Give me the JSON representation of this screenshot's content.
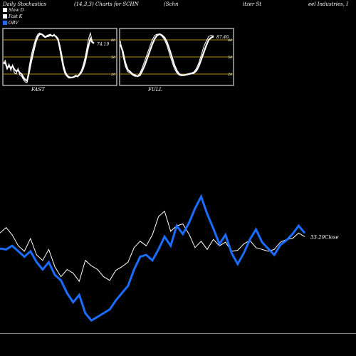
{
  "header": {
    "title_left": "Daily Stochastics",
    "title_mid": "(14,3,3) Charts for SCHN",
    "title_company_a": "(Schn",
    "title_company_b": "itzer St",
    "title_company_c": "eel Industries, I"
  },
  "legend": [
    {
      "label": "Slow  D",
      "color": "#ffffff"
    },
    {
      "label": "Fast  K",
      "color": "#ffffff"
    },
    {
      "label": "OBV",
      "color": "#1a6dff"
    }
  ],
  "colors": {
    "background": "#000000",
    "obv": "#1a6dff",
    "close": "#ffffff",
    "band": "#b8860b"
  },
  "chart_data": [
    {
      "type": "line",
      "name": "FAST",
      "label": "FAST",
      "ylim": [
        0,
        100
      ],
      "ticks": [
        20,
        50,
        80
      ],
      "last_value_label": "74.19",
      "series": [
        {
          "name": "Slow D",
          "values": [
            38,
            40,
            30,
            35,
            30,
            34,
            28,
            25,
            27,
            22,
            20,
            14,
            10,
            8,
            22,
            38,
            52,
            66,
            78,
            86,
            90,
            90,
            88,
            85,
            86,
            87,
            88,
            87,
            88,
            86,
            82,
            70,
            54,
            36,
            24,
            18,
            15,
            14,
            14,
            15,
            17,
            16,
            19,
            23,
            30,
            40,
            55,
            70,
            82,
            76,
            74
          ]
        },
        {
          "name": "Fast K",
          "values": [
            40,
            44,
            28,
            38,
            26,
            36,
            22,
            20,
            30,
            18,
            16,
            10,
            6,
            5,
            30,
            48,
            62,
            74,
            84,
            90,
            92,
            90,
            86,
            84,
            88,
            89,
            90,
            86,
            90,
            84,
            80,
            64,
            46,
            30,
            20,
            16,
            13,
            13,
            14,
            16,
            18,
            15,
            21,
            26,
            36,
            48,
            64,
            82,
            92,
            78,
            74
          ]
        }
      ]
    },
    {
      "type": "line",
      "name": "FULL",
      "label": "FULL",
      "ylim": [
        0,
        100
      ],
      "ticks": [
        20,
        50,
        80
      ],
      "last_value_label": "87.46",
      "series": [
        {
          "name": "Slow D",
          "values": [
            72,
            60,
            40,
            28,
            24,
            20,
            18,
            16,
            18,
            26,
            36,
            48,
            60,
            72,
            82,
            88,
            90,
            88,
            84,
            76,
            64,
            50,
            36,
            26,
            20,
            18,
            18,
            19,
            20,
            21,
            22,
            26,
            34,
            46,
            58,
            70,
            80,
            84,
            86
          ]
        },
        {
          "name": "Fast K",
          "values": [
            78,
            54,
            34,
            24,
            22,
            18,
            16,
            16,
            22,
            32,
            44,
            56,
            68,
            80,
            88,
            90,
            90,
            86,
            80,
            70,
            56,
            42,
            30,
            22,
            18,
            17,
            18,
            20,
            21,
            22,
            24,
            30,
            40,
            54,
            68,
            78,
            86,
            88,
            87
          ]
        }
      ]
    },
    {
      "type": "line",
      "name": "OBV and Close",
      "last_value_label": "33.20Close",
      "series": [
        {
          "name": "OBV",
          "values": [
            93,
            92,
            96,
            90,
            84,
            90,
            78,
            70,
            78,
            64,
            58,
            44,
            34,
            42,
            22,
            14,
            18,
            22,
            26,
            36,
            44,
            52,
            70,
            84,
            86,
            80,
            92,
            106,
            96,
            118,
            109,
            121,
            137,
            150,
            131,
            115,
            98,
            108,
            88,
            76,
            88,
            103,
            114,
            100,
            93,
            86,
            97,
            102,
            109,
            118,
            110
          ]
        },
        {
          "name": "Close",
          "values": [
            110,
            116,
            108,
            96,
            90,
            104,
            86,
            80,
            92,
            73,
            62,
            70,
            66,
            57,
            80,
            74,
            70,
            62,
            58,
            69,
            73,
            78,
            94,
            101,
            96,
            108,
            128,
            134,
            112,
            118,
            120,
            109,
            94,
            101,
            92,
            103,
            96,
            100,
            90,
            91,
            98,
            102,
            94,
            92,
            90,
            92,
            100,
            103,
            104,
            110,
            106
          ]
        }
      ]
    }
  ]
}
